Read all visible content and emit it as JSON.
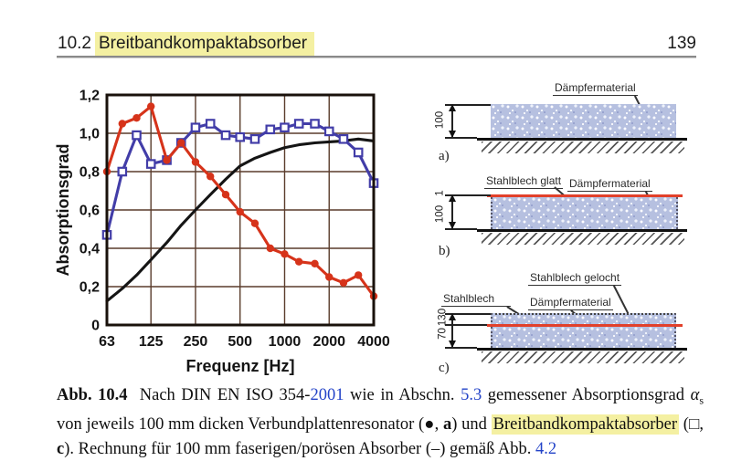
{
  "header": {
    "section_number": "10.2",
    "section_title": "Breitbandkompaktabsorber",
    "page_number": "139",
    "highlight_color": "#f4f0a2"
  },
  "chart_data": {
    "type": "line",
    "title": "",
    "xlabel": "Frequenz [Hz]",
    "ylabel": "Absorptionsgrad",
    "x_scale": "log2",
    "xlim": [
      63,
      4000
    ],
    "ylim": [
      0,
      1.2
    ],
    "grid": true,
    "legend": "none (markers explained in caption)",
    "x_ticks": [
      63,
      125,
      250,
      500,
      1000,
      2000,
      4000
    ],
    "x_tick_labels": [
      "63",
      "125",
      "250",
      "500",
      "1000",
      "2000",
      "4000"
    ],
    "y_ticks": [
      0,
      0.2,
      0.4,
      0.6,
      0.8,
      1.0,
      1.2
    ],
    "y_tick_labels": [
      "0",
      "0,2",
      "0,4",
      "0,6",
      "0,8",
      "1,0",
      "1,2"
    ],
    "colors": {
      "grid": "#5a3c2c",
      "frame": "#19110b"
    },
    "frequencies": [
      63,
      80,
      100,
      125,
      160,
      200,
      250,
      315,
      400,
      500,
      630,
      800,
      1000,
      1250,
      1600,
      2000,
      2500,
      3150,
      4000
    ],
    "series": [
      {
        "name": "Rechnung 100 mm faseriger/poröser Absorber (–)",
        "marker": "none",
        "color": "#151515",
        "values": [
          0.125,
          0.19,
          0.26,
          0.34,
          0.43,
          0.52,
          0.6,
          0.68,
          0.76,
          0.83,
          0.87,
          0.9,
          0.925,
          0.94,
          0.95,
          0.955,
          0.96,
          0.97,
          0.96
        ]
      },
      {
        "name": "Breitbandkompaktabsorber (□, c)",
        "marker": "open-square",
        "color": "#423da8",
        "values": [
          0.47,
          0.8,
          0.99,
          0.84,
          0.86,
          0.95,
          1.03,
          1.05,
          0.99,
          0.98,
          0.97,
          1.02,
          1.03,
          1.05,
          1.05,
          1.01,
          0.97,
          0.9,
          0.74
        ]
      },
      {
        "name": "Verbundplattenresonator (●, a)",
        "marker": "filled-circle",
        "color": "#d6331a",
        "values": [
          0.8,
          1.05,
          1.08,
          1.14,
          0.86,
          0.95,
          0.85,
          0.775,
          0.68,
          0.59,
          0.53,
          0.4,
          0.37,
          0.33,
          0.32,
          0.25,
          0.22,
          0.26,
          0.15
        ]
      }
    ]
  },
  "diagrams": {
    "a": {
      "label": "a)",
      "material_label": "Dämpfermaterial",
      "dim": "100"
    },
    "b": {
      "label": "b)",
      "steel_label": "Stahlblech glatt",
      "material_label": "Dämpfermaterial",
      "dim_steel": "1",
      "dim": "100"
    },
    "c": {
      "label": "c)",
      "perforated_label": "Stahlblech gelocht",
      "steel_label": "Stahlblech",
      "material_label": "Dämpfermaterial",
      "dim_top": "130",
      "dim_bottom": "70"
    }
  },
  "caption": {
    "segments": [
      {
        "t": "Abb. 10.4",
        "s": "bold"
      },
      {
        "t": "  Nach DIN EN ISO 354-",
        "s": "plain"
      },
      {
        "t": "2001",
        "s": "link"
      },
      {
        "t": " wie in Abschn. ",
        "s": "plain"
      },
      {
        "t": "5.3",
        "s": "link"
      },
      {
        "t": " gemessener Absorptionsgrad ",
        "s": "plain"
      },
      {
        "t": "α",
        "s": "italic"
      },
      {
        "t": "s",
        "s": "sub"
      },
      {
        "t": " von jeweils 100 mm dicken Verbundplattenresonator (●, ",
        "s": "plain"
      },
      {
        "t": "a",
        "s": "bold"
      },
      {
        "t": ") und ",
        "s": "plain"
      },
      {
        "t": "Breitbandkompaktabsorber",
        "s": "highlight"
      },
      {
        "t": " (□, ",
        "s": "plain"
      },
      {
        "t": "c",
        "s": "bold"
      },
      {
        "t": "). Rechnung für 100 mm faserigen/porösen Absorber (–) gemäß Abb. ",
        "s": "plain"
      },
      {
        "t": "4.2",
        "s": "link"
      }
    ]
  }
}
